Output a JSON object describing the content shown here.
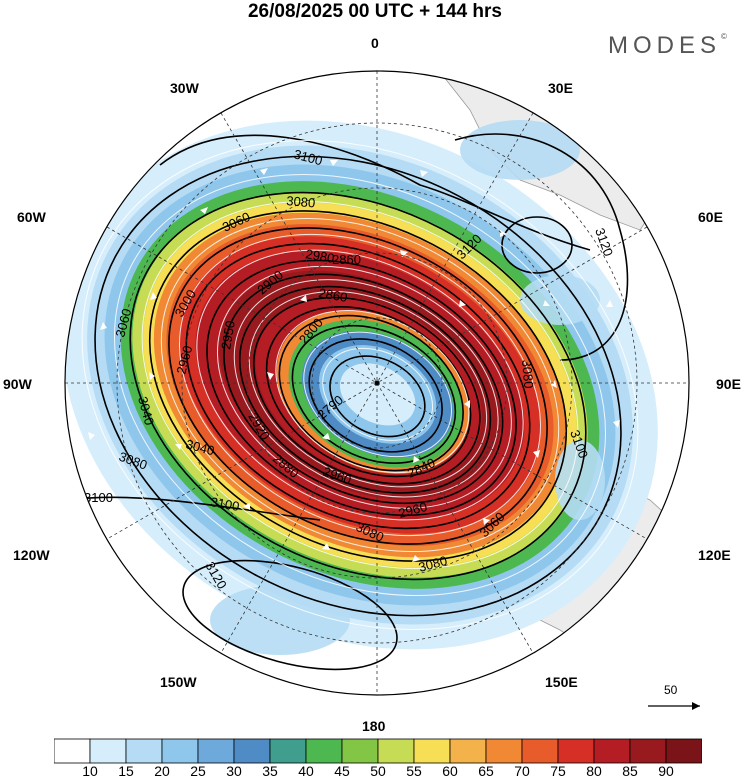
{
  "title": "26/08/2025  00 UTC  + 144 hrs",
  "brand": "MODES",
  "brand_mark": "©",
  "longitude_labels": {
    "top": "0",
    "bottom": "180",
    "w30": "30W",
    "e30": "30E",
    "w60": "60W",
    "e60": "60E",
    "w90": "90W",
    "e90": "90E",
    "w120": "120W",
    "e120": "120E",
    "w150": "150W",
    "e150": "150E"
  },
  "contour_labels": [
    "3100",
    "3080",
    "3060",
    "2980",
    "2860",
    "2800",
    "2790",
    "3120",
    "3120",
    "3080",
    "3060",
    "3040",
    "3080",
    "3100",
    "3100",
    "3120",
    "3040",
    "2960",
    "2920",
    "2950",
    "2960",
    "2840",
    "2960",
    "3060",
    "3080",
    "3080",
    "3100",
    "3000",
    "2880",
    "2900",
    "2860"
  ],
  "reference_vector": "50",
  "colorbar": {
    "levels": [
      "10",
      "15",
      "20",
      "25",
      "30",
      "35",
      "40",
      "45",
      "50",
      "55",
      "60",
      "65",
      "70",
      "75",
      "80",
      "85",
      "90"
    ],
    "colors": [
      "#ffffff",
      "#d6eefb",
      "#b5dcf4",
      "#8fc7ec",
      "#6ea9dc",
      "#4f8cc6",
      "#3f9e8e",
      "#4db84f",
      "#83c545",
      "#c7dc55",
      "#f7df55",
      "#f4b24a",
      "#f08834",
      "#e85b2a",
      "#d62f26",
      "#b51d24",
      "#981a1f",
      "#7a1418"
    ]
  }
}
